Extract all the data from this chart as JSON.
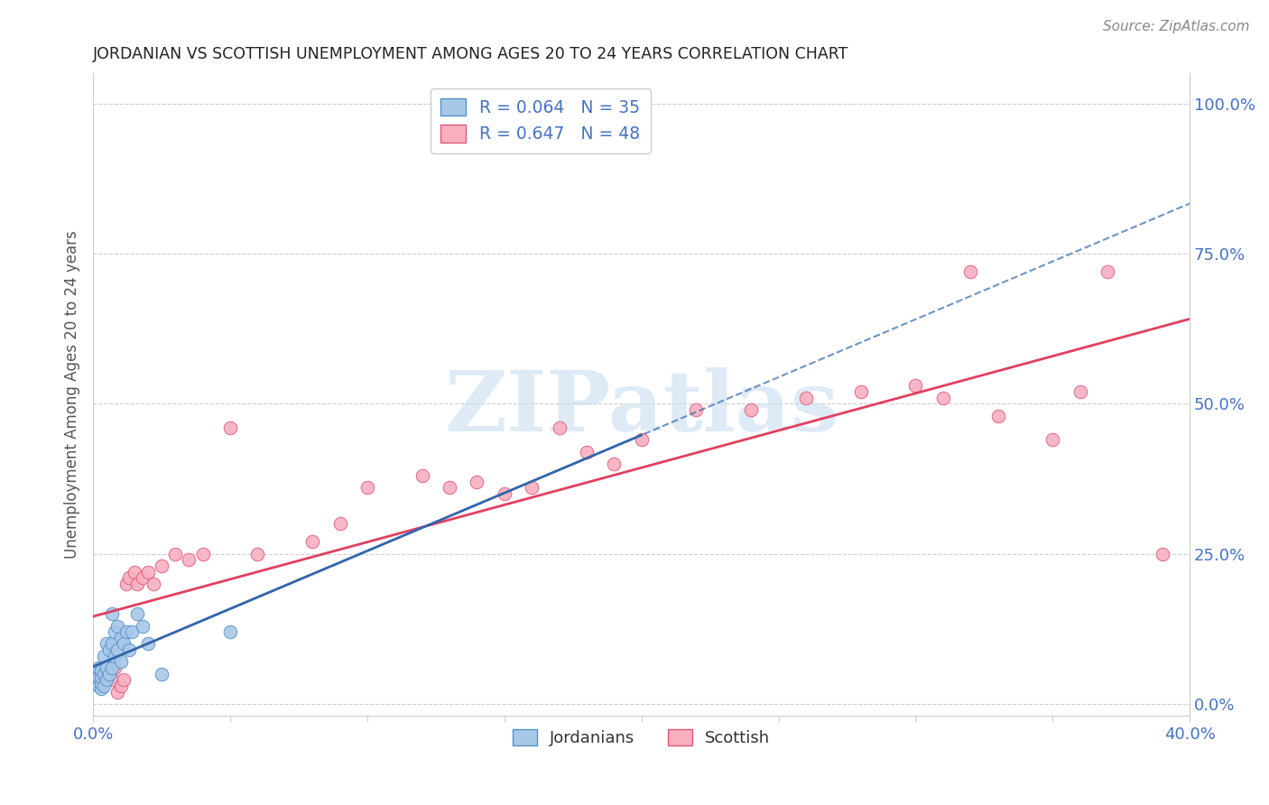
{
  "title": "JORDANIAN VS SCOTTISH UNEMPLOYMENT AMONG AGES 20 TO 24 YEARS CORRELATION CHART",
  "source": "Source: ZipAtlas.com",
  "ylabel": "Unemployment Among Ages 20 to 24 years",
  "xlim": [
    0.0,
    0.4
  ],
  "ylim": [
    -0.02,
    1.05
  ],
  "y_tick_labels_right": [
    "0.0%",
    "25.0%",
    "50.0%",
    "75.0%",
    "100.0%"
  ],
  "y_ticks_right": [
    0.0,
    0.25,
    0.5,
    0.75,
    1.0
  ],
  "background_color": "#ffffff",
  "jordan_fill_color": "#a8c8e8",
  "jordan_edge_color": "#5590c8",
  "scottish_fill_color": "#f8b0c0",
  "scottish_edge_color": "#e05878",
  "jordan_line_color": "#3366aa",
  "scottish_line_color": "#e04060",
  "watermark_color": "#c8dff0",
  "jordan_scatter_x": [
    0.001,
    0.001,
    0.002,
    0.002,
    0.002,
    0.003,
    0.003,
    0.003,
    0.003,
    0.004,
    0.004,
    0.004,
    0.005,
    0.005,
    0.005,
    0.006,
    0.006,
    0.007,
    0.007,
    0.007,
    0.008,
    0.008,
    0.009,
    0.009,
    0.01,
    0.01,
    0.011,
    0.012,
    0.013,
    0.014,
    0.016,
    0.018,
    0.02,
    0.025,
    0.05
  ],
  "jordan_scatter_y": [
    0.04,
    0.05,
    0.03,
    0.045,
    0.06,
    0.025,
    0.035,
    0.045,
    0.055,
    0.03,
    0.05,
    0.08,
    0.04,
    0.06,
    0.1,
    0.05,
    0.09,
    0.06,
    0.1,
    0.15,
    0.08,
    0.12,
    0.09,
    0.13,
    0.07,
    0.11,
    0.1,
    0.12,
    0.09,
    0.12,
    0.15,
    0.13,
    0.1,
    0.05,
    0.12
  ],
  "scottish_scatter_x": [
    0.001,
    0.002,
    0.003,
    0.004,
    0.005,
    0.006,
    0.007,
    0.008,
    0.009,
    0.01,
    0.011,
    0.012,
    0.013,
    0.015,
    0.016,
    0.018,
    0.02,
    0.022,
    0.025,
    0.03,
    0.035,
    0.04,
    0.05,
    0.06,
    0.08,
    0.09,
    0.1,
    0.12,
    0.13,
    0.14,
    0.15,
    0.16,
    0.17,
    0.18,
    0.19,
    0.2,
    0.22,
    0.24,
    0.26,
    0.28,
    0.3,
    0.31,
    0.32,
    0.33,
    0.35,
    0.36,
    0.37,
    0.39
  ],
  "scottish_scatter_y": [
    0.05,
    0.04,
    0.03,
    0.045,
    0.06,
    0.05,
    0.04,
    0.06,
    0.02,
    0.03,
    0.04,
    0.2,
    0.21,
    0.22,
    0.2,
    0.21,
    0.22,
    0.2,
    0.23,
    0.25,
    0.24,
    0.25,
    0.46,
    0.25,
    0.27,
    0.3,
    0.36,
    0.38,
    0.36,
    0.37,
    0.35,
    0.36,
    0.46,
    0.42,
    0.4,
    0.44,
    0.49,
    0.49,
    0.51,
    0.52,
    0.53,
    0.51,
    0.72,
    0.48,
    0.44,
    0.52,
    0.72,
    0.25
  ],
  "legend1_label": "R = 0.064   N = 35",
  "legend2_label": "R = 0.647   N = 48",
  "bottom_legend1": "Jordanians",
  "bottom_legend2": "Scottish"
}
